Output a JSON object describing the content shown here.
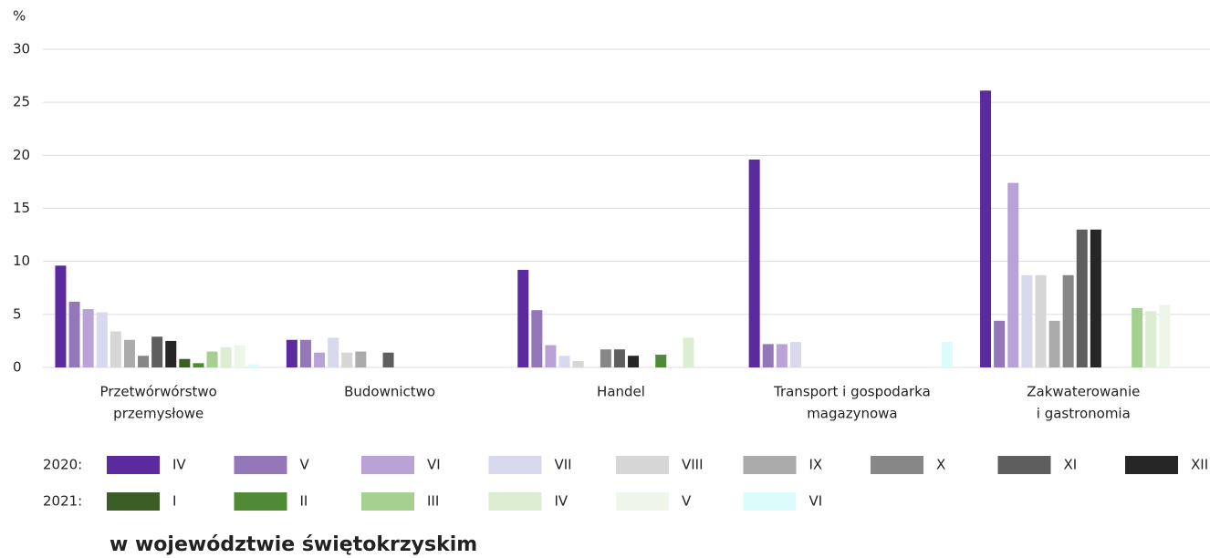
{
  "chart_data": {
    "type": "bar",
    "y_label": "%",
    "caption": "w województwie świętokrzyskim",
    "categories": [
      [
        "Przetwórwórstwo",
        "przemysłowe"
      ],
      [
        "Budownictwo"
      ],
      [
        "Handel"
      ],
      [
        "Transport i gospodarka",
        "magazynowa"
      ],
      [
        "Zakwaterowanie",
        "i gastronomia"
      ]
    ],
    "ylim": [
      0,
      30
    ],
    "yticks": [
      0,
      5,
      10,
      15,
      20,
      25,
      30
    ],
    "grid": true,
    "series_groups": [
      {
        "label": "2020:",
        "series": [
          {
            "name": "IV",
            "color": "#5b2a9e",
            "values": [
              9.6,
              2.6,
              9.2,
              19.6,
              26.1
            ]
          },
          {
            "name": "V",
            "color": "#9477b8",
            "values": [
              6.2,
              2.6,
              5.4,
              2.2,
              4.4
            ]
          },
          {
            "name": "VI",
            "color": "#b9a3d6",
            "values": [
              5.5,
              1.4,
              2.1,
              2.2,
              17.4
            ]
          },
          {
            "name": "VII",
            "color": "#d8d8ee",
            "values": [
              5.2,
              2.8,
              1.1,
              2.4,
              8.7
            ]
          },
          {
            "name": "VIII",
            "color": "#d6d6d6",
            "values": [
              3.4,
              1.4,
              0.6,
              0,
              8.7
            ]
          },
          {
            "name": "IX",
            "color": "#ababab",
            "values": [
              2.6,
              1.5,
              0,
              0,
              4.4
            ]
          },
          {
            "name": "X",
            "color": "#878787",
            "values": [
              1.1,
              0,
              1.7,
              0,
              8.7
            ]
          },
          {
            "name": "XI",
            "color": "#5e5e5e",
            "values": [
              2.9,
              1.4,
              1.7,
              0,
              13.0
            ]
          },
          {
            "name": "XII",
            "color": "#262626",
            "values": [
              2.5,
              0,
              1.1,
              0,
              13.0
            ]
          }
        ]
      },
      {
        "label": "2021:",
        "series": [
          {
            "name": "I",
            "color": "#3a5e26",
            "values": [
              0.8,
              0,
              0,
              0,
              0
            ]
          },
          {
            "name": "II",
            "color": "#4f8a37",
            "values": [
              0.4,
              0,
              1.2,
              0,
              0
            ]
          },
          {
            "name": "III",
            "color": "#a6d08f",
            "values": [
              1.5,
              0,
              0,
              0,
              5.6
            ]
          },
          {
            "name": "IV",
            "color": "#dcedd2",
            "values": [
              1.9,
              0,
              2.8,
              0,
              5.3
            ]
          },
          {
            "name": "V",
            "color": "#eef6ea",
            "values": [
              2.1,
              0,
              0,
              0,
              5.9
            ]
          },
          {
            "name": "VI",
            "color": "#dcfcfc",
            "values": [
              0.3,
              0,
              0,
              2.4,
              0
            ]
          }
        ]
      }
    ]
  }
}
